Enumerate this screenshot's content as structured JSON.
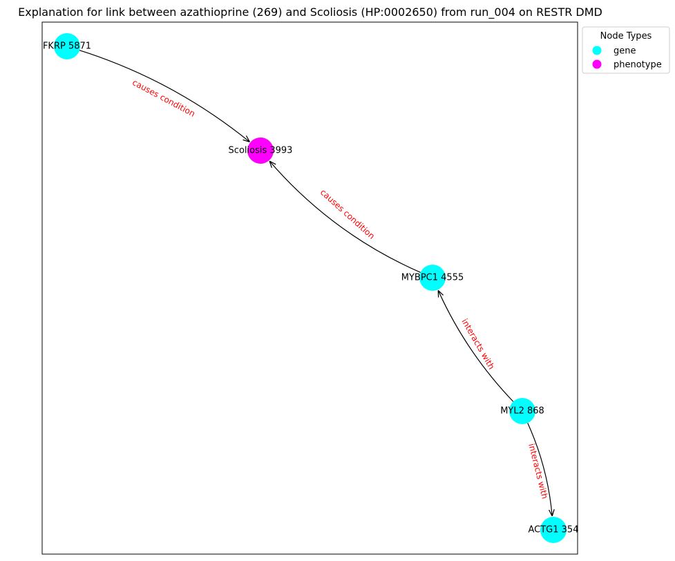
{
  "title": "Explanation for link between azathioprine (269) and Scoliosis (HP:0002650) from run_004 on RESTR DMD",
  "colors": {
    "gene": "#00ffff",
    "phenotype": "#ff00ff",
    "edge": "#000000",
    "edge_label": "#ff0000"
  },
  "legend": {
    "title": "Node Types",
    "items": [
      {
        "label": "gene",
        "type": "gene"
      },
      {
        "label": "phenotype",
        "type": "phenotype"
      }
    ]
  },
  "nodes": [
    {
      "id": "fkrp",
      "label": "FKRP 5871",
      "type": "gene"
    },
    {
      "id": "scoliosis",
      "label": "Scoliosis 3993",
      "type": "phenotype"
    },
    {
      "id": "mybpc1",
      "label": "MYBPC1 4555",
      "type": "gene"
    },
    {
      "id": "myl2",
      "label": "MYL2 868",
      "type": "gene"
    },
    {
      "id": "actg1",
      "label": "ACTG1 354",
      "type": "gene"
    }
  ],
  "edges": [
    {
      "source": "fkrp",
      "target": "scoliosis",
      "label": "causes condition"
    },
    {
      "source": "mybpc1",
      "target": "scoliosis",
      "label": "causes condition"
    },
    {
      "source": "myl2",
      "target": "mybpc1",
      "label": "interacts with"
    },
    {
      "source": "myl2",
      "target": "actg1",
      "label": "interacts with"
    }
  ]
}
